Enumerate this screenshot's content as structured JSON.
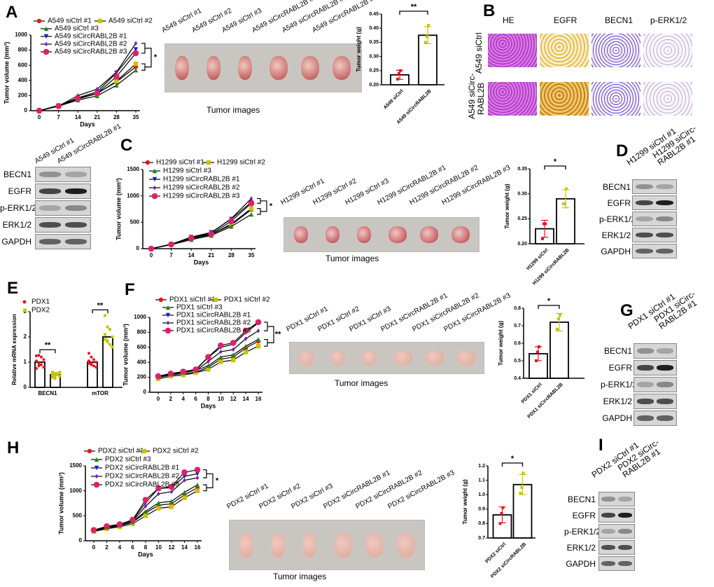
{
  "panels": [
    "A",
    "B",
    "C",
    "D",
    "E",
    "F",
    "G",
    "H",
    "I"
  ],
  "series_colors": [
    "#e8141c",
    "#c8c400",
    "#1a8a1a",
    "#1a1adc",
    "#7a1ab4",
    "#e0206a"
  ],
  "tumor_images": [
    {
      "labels": [
        "A549 siCtrl #1",
        "A549 siCtrl #2",
        "A549 siCtrl #3",
        "A549 siCircRABL2B #1",
        "A549 siCircRABL2B #2",
        "A549 siCircRABL2B #3"
      ],
      "caption": "Tumor images"
    },
    {
      "labels": [
        "H1299 siCtrl #1",
        "H1299 siCtrl #2",
        "H1299 siCtrl #3",
        "H1299 siCircRABL2B #1",
        "H1299 siCircRABL2B #2",
        "H1299 siCircRABL2B #3"
      ],
      "caption": "Tumor images"
    },
    {
      "labels": [
        "PDX1 siCtrl #1",
        "PDX1 siCtrl #2",
        "PDX1 siCtrl #3",
        "PDX1 siCircRABL2B #1",
        "PDX1 siCircRABL2B #2",
        "PDX1 siCircRABL2B #3"
      ],
      "caption": "Tumor images"
    },
    {
      "labels": [
        "PDX2 siCtrl #1",
        "PDX2 siCtrl #2",
        "PDX2 siCtrl #3",
        "PDX2 siCircRABL2B #1",
        "PDX2 siCircRABL2B #2",
        "PDX2 siCircRABL2B #3"
      ],
      "caption": "Tumor images"
    }
  ],
  "ihc": {
    "columns": [
      "HE",
      "EGFR",
      "BECN1",
      "p-ERK1/2"
    ],
    "rows": [
      "A549 siCtrl",
      "A549 siCirc-\nRABL2B"
    ]
  },
  "blots": [
    {
      "lanes": [
        "A549 siCtrl #1",
        "A549 siCircRABL2B #1"
      ],
      "proteins": [
        "BECN1",
        "EGFR",
        "p-ERK1/2",
        "ERK1/2",
        "GAPDH"
      ]
    },
    {
      "lanes": [
        "H1299 siCtrl #1",
        "H1299 siCirc-\nRABL2B #1"
      ],
      "proteins": [
        "BECN1",
        "EGFR",
        "p-ERK1/2",
        "ERK1/2",
        "GAPDH"
      ]
    },
    {
      "lanes": [
        "PDX1 siCtrl #1",
        "PDX1 siCirc-\nRABL2B #1"
      ],
      "proteins": [
        "BECN1",
        "EGFR",
        "p-ERK1/2",
        "ERK1/2",
        "GAPDH"
      ]
    },
    {
      "lanes": [
        "PDX2 siCtrl #1",
        "PDX2 siCirc-\nRABL2B #1"
      ],
      "proteins": [
        "BECN1",
        "EGFR",
        "p-ERK1/2",
        "ERK1/2",
        "GAPDH"
      ]
    }
  ],
  "chart_data": [
    {
      "id": "A-volume",
      "type": "line",
      "xlabel": "Days",
      "ylabel": "Tumor volume (mm3)",
      "x": [
        0,
        7,
        14,
        21,
        28,
        35
      ],
      "xticks": [
        0,
        7,
        14,
        21,
        28,
        35
      ],
      "ylim": [
        0,
        1000
      ],
      "yticks": [
        0,
        200,
        400,
        600,
        800,
        1000
      ],
      "significance": "*",
      "series": [
        {
          "name": "A549 siCtrl #1",
          "values": [
            0,
            65,
            160,
            230,
            380,
            580
          ]
        },
        {
          "name": "A549 siCtrl #2",
          "values": [
            0,
            70,
            155,
            225,
            390,
            620
          ]
        },
        {
          "name": "A549 siCtrl #3",
          "values": [
            0,
            60,
            140,
            195,
            335,
            535
          ]
        },
        {
          "name": "A549 siCircRABL2B #1",
          "values": [
            0,
            65,
            170,
            250,
            500,
            810
          ]
        },
        {
          "name": "A549 siCircRABL2B #2",
          "values": [
            0,
            60,
            200,
            285,
            510,
            890
          ]
        },
        {
          "name": "A549 siCircRABL2B #3",
          "values": [
            0,
            60,
            160,
            230,
            450,
            760
          ]
        }
      ]
    },
    {
      "id": "A-weight",
      "type": "bar",
      "ylabel": "Tumor weight (g)",
      "categories": [
        "A549 siCtrl",
        "A549 siCircRABL2B"
      ],
      "values": [
        0.235,
        0.375
      ],
      "points": [
        [
          0.22,
          0.24,
          0.25
        ],
        [
          0.35,
          0.37,
          0.41
        ]
      ],
      "errors": [
        0.016,
        0.03
      ],
      "ylim": [
        0.2,
        0.45
      ],
      "yticks": [
        0.2,
        0.25,
        0.3,
        0.35,
        0.4,
        0.45
      ],
      "significance": "**"
    },
    {
      "id": "C-volume",
      "type": "line",
      "xlabel": "Days",
      "ylabel": "Tumor volume (mm3)",
      "x": [
        0,
        7,
        14,
        21,
        28,
        35
      ],
      "xticks": [
        0,
        7,
        14,
        21,
        28,
        35
      ],
      "ylim": [
        0,
        1500
      ],
      "yticks": [
        0,
        500,
        1000,
        1500
      ],
      "significance": "*",
      "series": [
        {
          "name": "H1299 siCtrl #1",
          "values": [
            0,
            80,
            200,
            270,
            450,
            740
          ]
        },
        {
          "name": "H1299 siCtrl #2",
          "values": [
            0,
            85,
            190,
            265,
            470,
            760
          ]
        },
        {
          "name": "H1299 siCtrl #3",
          "values": [
            0,
            75,
            170,
            250,
            420,
            650
          ]
        },
        {
          "name": "H1299 siCircRABL2B #1",
          "values": [
            0,
            85,
            220,
            310,
            560,
            880
          ]
        },
        {
          "name": "H1299 siCircRABL2B #2",
          "values": [
            0,
            80,
            210,
            300,
            570,
            950
          ]
        },
        {
          "name": "H1299 siCircRABL2B #3",
          "values": [
            0,
            80,
            200,
            280,
            520,
            860
          ]
        }
      ]
    },
    {
      "id": "C-weight",
      "type": "bar",
      "ylabel": "Tumor weight (g)",
      "categories": [
        "H1299 siCtrl",
        "H1299 siCircRABL2B"
      ],
      "values": [
        0.23,
        0.29
      ],
      "points": [
        [
          0.21,
          0.24,
          0.24
        ],
        [
          0.28,
          0.28,
          0.31
        ]
      ],
      "errors": [
        0.017,
        0.018
      ],
      "ylim": [
        0.2,
        0.35
      ],
      "yticks": [
        0.2,
        0.25,
        0.3,
        0.35
      ],
      "significance": "*"
    },
    {
      "id": "E-mrna",
      "type": "bar",
      "ylabel": "Relative mRNA expression",
      "categories": [
        "BECN1",
        "mTOR"
      ],
      "series": [
        {
          "name": "PDX1",
          "values": [
            1.0,
            1.0
          ],
          "points": [
            [
              1.25,
              1.27,
              1.2,
              1.1,
              1.05,
              0.95,
              0.9,
              0.8,
              0.75,
              0.85
            ],
            [
              1.35,
              1.2,
              1.1,
              1.0,
              0.95,
              0.9,
              0.85,
              0.8,
              1.05,
              0.95
            ]
          ]
        },
        {
          "name": "PDX2",
          "values": [
            0.5,
            2.0
          ],
          "points": [
            [
              0.6,
              0.55,
              0.5,
              0.45,
              0.4,
              0.35,
              0.55,
              0.6,
              0.5,
              0.45
            ],
            [
              2.85,
              2.4,
              2.3,
              2.0,
              1.9,
              1.8,
              1.7,
              1.6,
              2.1,
              1.85
            ]
          ]
        }
      ],
      "ylim": [
        0,
        3
      ],
      "yticks": [
        0,
        1,
        2,
        3
      ],
      "legend": "top-left",
      "significance": [
        "**",
        "**"
      ]
    },
    {
      "id": "F-volume",
      "type": "line",
      "xlabel": "Days",
      "ylabel": "Tumor volume (mm3)",
      "x": [
        0,
        2,
        4,
        6,
        8,
        10,
        12,
        14,
        16
      ],
      "xticks": [
        0,
        2,
        4,
        6,
        8,
        10,
        12,
        14,
        16
      ],
      "ylim": [
        0,
        1000
      ],
      "yticks": [
        0,
        200,
        400,
        600,
        800,
        1000
      ],
      "significance": "**",
      "series": [
        {
          "name": "PDX1 siCtrl #1",
          "values": [
            200,
            230,
            250,
            265,
            335,
            440,
            470,
            590,
            680
          ]
        },
        {
          "name": "PDX1 siCtrl #2",
          "values": [
            180,
            215,
            230,
            260,
            305,
            405,
            430,
            535,
            615
          ]
        },
        {
          "name": "PDX1 siCtrl #3",
          "values": [
            205,
            240,
            265,
            290,
            355,
            470,
            500,
            615,
            705
          ]
        },
        {
          "name": "PDX1 siCircRABL2B #1",
          "values": [
            210,
            245,
            275,
            300,
            465,
            600,
            640,
            795,
            925
          ]
        },
        {
          "name": "PDX1 siCircRABL2B #2",
          "values": [
            200,
            240,
            265,
            290,
            410,
            540,
            570,
            715,
            820
          ]
        },
        {
          "name": "PDX1 siCircRABL2B #3",
          "values": [
            215,
            250,
            275,
            305,
            470,
            625,
            660,
            820,
            935
          ]
        }
      ]
    },
    {
      "id": "F-weight",
      "type": "bar",
      "ylabel": "Tumor weight (g)",
      "categories": [
        "PDX1 siCtrl",
        "PDX1 siCircRABL2B"
      ],
      "values": [
        0.54,
        0.72
      ],
      "points": [
        [
          0.5,
          0.55,
          0.58
        ],
        [
          0.68,
          0.74,
          0.76
        ]
      ],
      "errors": [
        0.04,
        0.05
      ],
      "ylim": [
        0.4,
        0.8
      ],
      "yticks": [
        0.4,
        0.5,
        0.6,
        0.7,
        0.8
      ],
      "significance": "*"
    },
    {
      "id": "H-volume",
      "type": "line",
      "xlabel": "Days",
      "ylabel": "Tumor volume (mm3)",
      "x": [
        0,
        2,
        4,
        6,
        8,
        10,
        12,
        14,
        16
      ],
      "xticks": [
        0,
        2,
        4,
        6,
        8,
        10,
        12,
        14,
        16
      ],
      "ylim": [
        0,
        1500
      ],
      "yticks": [
        0,
        500,
        1000,
        1500
      ],
      "significance": "*",
      "series": [
        {
          "name": "PDX2 siCtrl #1",
          "values": [
            200,
            260,
            300,
            370,
            560,
            710,
            740,
            920,
            1060
          ]
        },
        {
          "name": "PDX2 siCtrl #2",
          "values": [
            185,
            240,
            280,
            340,
            500,
            650,
            680,
            860,
            1000
          ]
        },
        {
          "name": "PDX2 siCtrl #3",
          "values": [
            205,
            270,
            310,
            380,
            590,
            760,
            790,
            970,
            1120
          ]
        },
        {
          "name": "PDX2 siCircRABL2B #1",
          "values": [
            210,
            280,
            330,
            410,
            760,
            1050,
            1060,
            1290,
            1340
          ]
        },
        {
          "name": "PDX2 siCircRABL2B #2",
          "values": [
            200,
            270,
            310,
            390,
            690,
            940,
            980,
            1210,
            1260
          ]
        },
        {
          "name": "PDX2 siCircRABL2B #3",
          "values": [
            215,
            290,
            330,
            420,
            820,
            1050,
            1080,
            1370,
            1420
          ]
        }
      ]
    },
    {
      "id": "H-weight",
      "type": "bar",
      "ylabel": "Tumor weight (g)",
      "categories": [
        "PDX2 siCtrl",
        "PDX2 siCircRABL2B"
      ],
      "values": [
        0.86,
        1.07
      ],
      "points": [
        [
          0.8,
          0.87,
          0.91
        ],
        [
          1.01,
          1.05,
          1.15
        ]
      ],
      "errors": [
        0.055,
        0.07
      ],
      "ylim": [
        0.7,
        1.2
      ],
      "yticks": [
        0.7,
        0.8,
        0.9,
        1.0,
        1.1,
        1.2
      ],
      "significance": "*"
    }
  ]
}
